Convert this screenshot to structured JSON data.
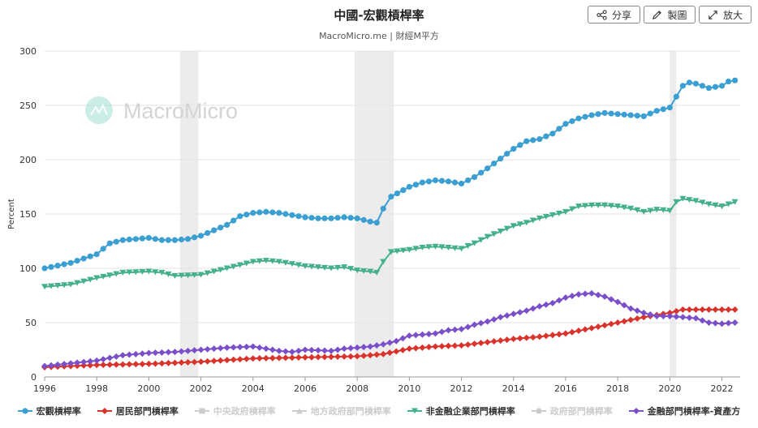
{
  "header": {
    "title": "中國-宏觀槓桿率",
    "subtitle": "MacroMicro.me | 財經M平方"
  },
  "toolbar": {
    "share_label": "分享",
    "draw_label": "製圖",
    "expand_label": "放大"
  },
  "watermark": {
    "text": "MacroMicro"
  },
  "chart_data": {
    "type": "line",
    "ylabel": "Percent",
    "xlim": [
      1996,
      2022.7
    ],
    "ylim": [
      0,
      300
    ],
    "y_ticks": [
      "0",
      "50",
      "100",
      "150",
      "200",
      "250",
      "300"
    ],
    "x_ticks": [
      "1996",
      "1998",
      "2000",
      "2002",
      "2004",
      "2006",
      "2008",
      "2010",
      "2012",
      "2014",
      "2016",
      "2018",
      "2020",
      "2022"
    ],
    "grid": "horizontal",
    "legend_position": "bottom",
    "recession_bands": [
      [
        2001.2,
        2001.9
      ],
      [
        2007.9,
        2009.4
      ],
      [
        2020.0,
        2020.25
      ]
    ],
    "series": [
      {
        "name": "宏觀槓桿率",
        "color": "#3b9fd2",
        "marker": "circle",
        "visible": true,
        "points": [
          [
            1996,
            100
          ],
          [
            1997,
            105
          ],
          [
            1998,
            113
          ],
          [
            1998.5,
            123
          ],
          [
            1999,
            126
          ],
          [
            2000,
            128
          ],
          [
            2000.5,
            126
          ],
          [
            2001,
            126
          ],
          [
            2001.5,
            127
          ],
          [
            2002,
            130
          ],
          [
            2003,
            140
          ],
          [
            2003.5,
            148
          ],
          [
            2004,
            151
          ],
          [
            2004.5,
            152
          ],
          [
            2005,
            151
          ],
          [
            2005.5,
            149
          ],
          [
            2006,
            147
          ],
          [
            2006.5,
            146
          ],
          [
            2007,
            146
          ],
          [
            2007.5,
            147
          ],
          [
            2008,
            146
          ],
          [
            2008.5,
            143
          ],
          [
            2008.75,
            142
          ],
          [
            2009,
            155
          ],
          [
            2009.3,
            166
          ],
          [
            2010,
            175
          ],
          [
            2010.5,
            179
          ],
          [
            2011,
            181
          ],
          [
            2011.5,
            180
          ],
          [
            2012,
            178
          ],
          [
            2012.5,
            184
          ],
          [
            2013,
            192
          ],
          [
            2013.5,
            201
          ],
          [
            2014,
            210
          ],
          [
            2014.5,
            217
          ],
          [
            2015,
            219
          ],
          [
            2015.5,
            224
          ],
          [
            2016,
            233
          ],
          [
            2016.5,
            238
          ],
          [
            2017,
            241
          ],
          [
            2017.5,
            243
          ],
          [
            2018,
            242
          ],
          [
            2018.5,
            241
          ],
          [
            2019,
            240
          ],
          [
            2019.5,
            245
          ],
          [
            2020,
            248
          ],
          [
            2020.25,
            258
          ],
          [
            2020.5,
            268
          ],
          [
            2020.75,
            271
          ],
          [
            2021,
            270
          ],
          [
            2021.5,
            266
          ],
          [
            2022,
            268
          ],
          [
            2022.25,
            272
          ],
          [
            2022.5,
            273
          ]
        ]
      },
      {
        "name": "居民部門槓桿率",
        "color": "#d9342b",
        "marker": "diamond",
        "visible": true,
        "points": [
          [
            1996,
            9
          ],
          [
            1998,
            11
          ],
          [
            2000,
            12
          ],
          [
            2002,
            14
          ],
          [
            2004,
            17
          ],
          [
            2006,
            18
          ],
          [
            2008,
            19
          ],
          [
            2009,
            21
          ],
          [
            2010,
            26
          ],
          [
            2011,
            28
          ],
          [
            2012,
            29
          ],
          [
            2013,
            32
          ],
          [
            2014,
            35
          ],
          [
            2015,
            37
          ],
          [
            2016,
            40
          ],
          [
            2017,
            45
          ],
          [
            2018,
            50
          ],
          [
            2019,
            55
          ],
          [
            2020,
            59
          ],
          [
            2020.5,
            62
          ],
          [
            2021,
            62
          ],
          [
            2022,
            62
          ],
          [
            2022.5,
            62
          ]
        ]
      },
      {
        "name": "中央政府槓桿率",
        "color": "#cccccc",
        "marker": "square",
        "visible": false,
        "points": []
      },
      {
        "name": "地方政府部門槓桿率",
        "color": "#cccccc",
        "marker": "triangle",
        "visible": false,
        "points": []
      },
      {
        "name": "非金融企業部門槓桿率",
        "color": "#45b08c",
        "marker": "triangle-down",
        "visible": true,
        "points": [
          [
            1996,
            83
          ],
          [
            1997,
            85
          ],
          [
            1998,
            91
          ],
          [
            1999,
            96
          ],
          [
            2000,
            97
          ],
          [
            2000.5,
            96
          ],
          [
            2001,
            93
          ],
          [
            2002,
            94
          ],
          [
            2003,
            100
          ],
          [
            2004,
            106
          ],
          [
            2004.5,
            107
          ],
          [
            2005,
            106
          ],
          [
            2005.5,
            104
          ],
          [
            2006,
            102
          ],
          [
            2006.5,
            101
          ],
          [
            2007,
            100
          ],
          [
            2007.5,
            101
          ],
          [
            2008,
            98
          ],
          [
            2008.5,
            97
          ],
          [
            2008.75,
            96
          ],
          [
            2009,
            106
          ],
          [
            2009.3,
            115
          ],
          [
            2010,
            117
          ],
          [
            2010.5,
            119
          ],
          [
            2011,
            120
          ],
          [
            2011.5,
            119
          ],
          [
            2012,
            118
          ],
          [
            2012.5,
            123
          ],
          [
            2013,
            129
          ],
          [
            2013.5,
            134
          ],
          [
            2014,
            139
          ],
          [
            2014.5,
            142
          ],
          [
            2015,
            146
          ],
          [
            2015.5,
            149
          ],
          [
            2016,
            152
          ],
          [
            2016.5,
            157
          ],
          [
            2017,
            158
          ],
          [
            2017.5,
            158
          ],
          [
            2018,
            157
          ],
          [
            2018.5,
            155
          ],
          [
            2019,
            152
          ],
          [
            2019.5,
            154
          ],
          [
            2020,
            153
          ],
          [
            2020.25,
            161
          ],
          [
            2020.5,
            164
          ],
          [
            2021,
            162
          ],
          [
            2021.5,
            159
          ],
          [
            2022,
            157
          ],
          [
            2022.25,
            159
          ],
          [
            2022.5,
            161
          ]
        ]
      },
      {
        "name": "政府部門槓桿率",
        "color": "#cccccc",
        "marker": "circle",
        "visible": false,
        "points": []
      },
      {
        "name": "金融部門槓桿率-資產方",
        "color": "#7b4fc9",
        "marker": "diamond",
        "visible": true,
        "points": [
          [
            1996,
            10
          ],
          [
            1998,
            15
          ],
          [
            1999,
            20
          ],
          [
            2000,
            22
          ],
          [
            2001,
            23
          ],
          [
            2002,
            25
          ],
          [
            2003,
            27
          ],
          [
            2004,
            28
          ],
          [
            2004.5,
            26
          ],
          [
            2005,
            24
          ],
          [
            2005.5,
            23
          ],
          [
            2006,
            25
          ],
          [
            2007,
            24
          ],
          [
            2007.5,
            26
          ],
          [
            2008,
            27
          ],
          [
            2008.5,
            28
          ],
          [
            2009,
            30
          ],
          [
            2009.5,
            33
          ],
          [
            2010,
            38
          ],
          [
            2011,
            40
          ],
          [
            2011.5,
            43
          ],
          [
            2012,
            44
          ],
          [
            2012.5,
            48
          ],
          [
            2013,
            51
          ],
          [
            2013.5,
            55
          ],
          [
            2014,
            58
          ],
          [
            2014.5,
            61
          ],
          [
            2015,
            65
          ],
          [
            2015.5,
            68
          ],
          [
            2016,
            73
          ],
          [
            2016.5,
            76
          ],
          [
            2017,
            77
          ],
          [
            2017.5,
            74
          ],
          [
            2018,
            69
          ],
          [
            2018.5,
            63
          ],
          [
            2019,
            59
          ],
          [
            2019.5,
            56
          ],
          [
            2020,
            56
          ],
          [
            2020.5,
            55
          ],
          [
            2021,
            54
          ],
          [
            2021.5,
            50
          ],
          [
            2022,
            49
          ],
          [
            2022.5,
            50
          ]
        ]
      }
    ]
  }
}
